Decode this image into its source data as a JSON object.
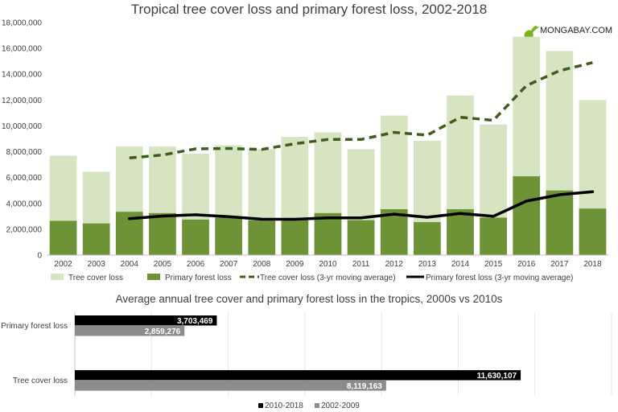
{
  "logo": {
    "text": "MONGABAY.COM"
  },
  "chart_data": [
    {
      "type": "bar",
      "title": "Tropical tree cover loss and primary forest loss, 2002-2018",
      "xlabel": "",
      "ylabel": "",
      "ylim": [
        0,
        18000000
      ],
      "yticks": [
        0,
        2000000,
        4000000,
        6000000,
        8000000,
        10000000,
        12000000,
        14000000,
        16000000,
        18000000
      ],
      "ytick_labels": [
        "0",
        "2,000,000",
        "4,000,000",
        "6,000,000",
        "8,000,000",
        "10,000,000",
        "12,000,000",
        "14,000,000",
        "16,000,000",
        "18,000,000"
      ],
      "grid": false,
      "legend_position": "bottom",
      "categories": [
        "2002",
        "2003",
        "2004",
        "2005",
        "2006",
        "2007",
        "2008",
        "2009",
        "2010",
        "2011",
        "2012",
        "2013",
        "2014",
        "2015",
        "2016",
        "2017",
        "2018"
      ],
      "series": [
        {
          "name": "Tree cover loss",
          "kind": "bar",
          "color": "#d6e4c2",
          "values": [
            7700000,
            6450000,
            8400000,
            8400000,
            7850000,
            8500000,
            8200000,
            9150000,
            9500000,
            8200000,
            10800000,
            8850000,
            12350000,
            10100000,
            16900000,
            15800000,
            12000000
          ]
        },
        {
          "name": "Primary forest loss",
          "kind": "bar",
          "color": "#6e9236",
          "values": [
            2650000,
            2450000,
            3350000,
            3250000,
            2750000,
            2900000,
            2700000,
            2700000,
            3250000,
            2700000,
            3550000,
            2550000,
            3550000,
            2900000,
            6100000,
            5000000,
            3600000
          ]
        },
        {
          "name": "Tree cover loss (3-yr moving average)",
          "kind": "line",
          "style": "dashed",
          "color": "#3f5c1e",
          "values": [
            null,
            null,
            7520000,
            7750000,
            8220000,
            8250000,
            8180000,
            8620000,
            8950000,
            8950000,
            9500000,
            9280000,
            10670000,
            10430000,
            13120000,
            14270000,
            14900000
          ]
        },
        {
          "name": "Primary forest loss (3-yr moving average)",
          "kind": "line",
          "style": "solid",
          "color": "#000000",
          "values": [
            null,
            null,
            2820000,
            3020000,
            3120000,
            2970000,
            2780000,
            2770000,
            2880000,
            2880000,
            3170000,
            2930000,
            3220000,
            3000000,
            4180000,
            4670000,
            4900000
          ]
        }
      ]
    },
    {
      "type": "bar",
      "orientation": "horizontal",
      "title": "Average annual tree cover and primary forest loss in the tropics, 2000s vs 2010s",
      "xlabel": "",
      "ylabel": "",
      "xlim": [
        0,
        14000000
      ],
      "grid": true,
      "legend_position": "bottom",
      "categories": [
        "Primary forest loss",
        "Tree cover loss"
      ],
      "series": [
        {
          "name": "2010-2018",
          "color": "#000000",
          "values": [
            3703469,
            11630107
          ],
          "labels": [
            "3,703,469",
            "11,630,107"
          ]
        },
        {
          "name": "2002-2009",
          "color": "#8c8c8c",
          "values": [
            2859276,
            8119163
          ],
          "labels": [
            "2,859,276",
            "8,119,163"
          ]
        }
      ]
    }
  ]
}
